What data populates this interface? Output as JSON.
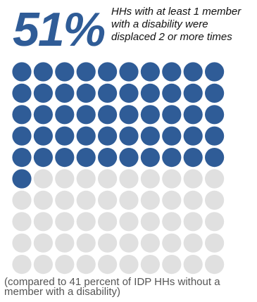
{
  "headline": {
    "percent": "51%",
    "text": "HHs with at least 1 member with a disability were displaced 2 or more times"
  },
  "footnote": "(compared to 41 percent of IDP HHs without a member with a disability)",
  "chart_data": {
    "type": "waffle",
    "total": 100,
    "rows": 10,
    "columns": 10,
    "highlighted": 51,
    "colors": {
      "highlighted": "#2f5c97",
      "remaining": "#e0e0e0"
    }
  }
}
